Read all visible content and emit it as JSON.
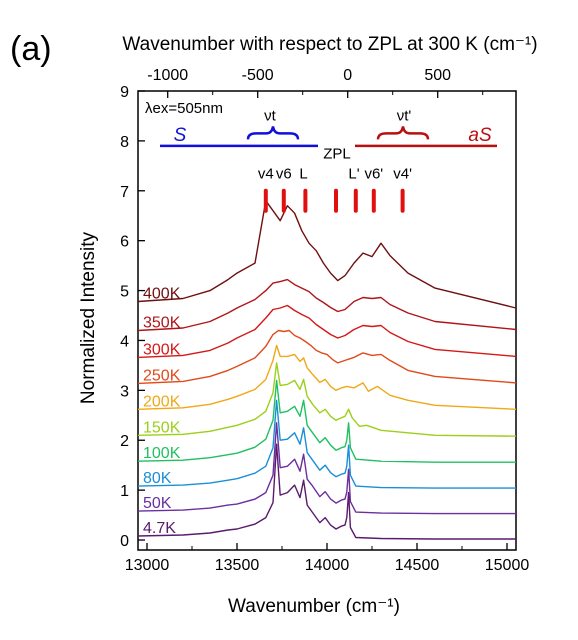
{
  "panel_label": "(a)",
  "chart_data": {
    "type": "line",
    "title": "",
    "xlabel": "Wavenumber (cm⁻¹)",
    "ylabel": "Normalized Intensity",
    "top_xlabel": "Wavenumber with respect to ZPL at 300 K (cm⁻¹)",
    "xlim": [
      12950,
      15050
    ],
    "ylim": [
      -0.2,
      9
    ],
    "top_xlim": [
      -1165,
      935
    ],
    "x_ticks": [
      "13000",
      "13500",
      "14000",
      "14500",
      "15000"
    ],
    "y_ticks": [
      "0",
      "1",
      "2",
      "3",
      "4",
      "5",
      "6",
      "7",
      "8",
      "9"
    ],
    "top_ticks": [
      "-1000",
      "-500",
      "0",
      "500"
    ],
    "grid": false,
    "series": [
      {
        "name": "4.7K",
        "offset": 0,
        "color": "#5a1a6e",
        "peak": 1.0,
        "broad": 0.15,
        "x": [
          12950,
          13200,
          13350,
          13450,
          13500,
          13600,
          13660,
          13700,
          13720,
          13740,
          13780,
          13820,
          13850,
          13870,
          13890,
          13920,
          13960,
          13990,
          14020,
          14050,
          14080,
          14100,
          14110,
          14120,
          14130,
          14160,
          14300,
          14600,
          15050
        ],
        "y": [
          0.08,
          0.1,
          0.14,
          0.2,
          0.22,
          0.32,
          0.45,
          0.75,
          1.92,
          0.9,
          0.95,
          1.1,
          0.85,
          1.2,
          0.7,
          0.55,
          0.35,
          0.45,
          0.3,
          0.22,
          0.28,
          0.3,
          0.45,
          0.95,
          0.25,
          0.05,
          0.03,
          0.02,
          0.02
        ]
      },
      {
        "name": "50K",
        "offset": 0.5,
        "color": "#6a2fa0",
        "peak": 1.0,
        "broad": 0.2,
        "x": [
          12950,
          13200,
          13350,
          13450,
          13500,
          13600,
          13660,
          13700,
          13720,
          13740,
          13780,
          13820,
          13850,
          13870,
          13890,
          13920,
          13960,
          13990,
          14020,
          14050,
          14080,
          14100,
          14110,
          14120,
          14130,
          14160,
          14300,
          14600,
          15050
        ],
        "y": [
          0.08,
          0.1,
          0.14,
          0.2,
          0.22,
          0.32,
          0.45,
          0.8,
          1.85,
          0.95,
          0.98,
          1.12,
          0.88,
          1.22,
          0.72,
          0.58,
          0.37,
          0.47,
          0.32,
          0.24,
          0.3,
          0.32,
          0.46,
          0.92,
          0.27,
          0.06,
          0.04,
          0.03,
          0.03
        ]
      },
      {
        "name": "80K",
        "offset": 1.0,
        "color": "#1a8fd8",
        "peak": 1.0,
        "broad": 0.25,
        "x": [
          12950,
          13200,
          13350,
          13450,
          13500,
          13600,
          13660,
          13700,
          13720,
          13740,
          13780,
          13820,
          13850,
          13870,
          13890,
          13920,
          13960,
          13990,
          14020,
          14050,
          14080,
          14100,
          14110,
          14120,
          14130,
          14160,
          14300,
          14600,
          15050
        ],
        "y": [
          0.08,
          0.1,
          0.14,
          0.2,
          0.23,
          0.34,
          0.48,
          0.85,
          1.8,
          1.0,
          1.02,
          1.15,
          0.92,
          1.25,
          0.75,
          0.6,
          0.4,
          0.5,
          0.35,
          0.27,
          0.32,
          0.34,
          0.48,
          0.9,
          0.3,
          0.08,
          0.05,
          0.04,
          0.04
        ]
      },
      {
        "name": "100K",
        "offset": 1.5,
        "color": "#20c060",
        "peak": 1.0,
        "broad": 0.3,
        "x": [
          12950,
          13200,
          13350,
          13450,
          13500,
          13600,
          13660,
          13700,
          13720,
          13740,
          13780,
          13820,
          13850,
          13870,
          13890,
          13920,
          13960,
          13990,
          14020,
          14050,
          14080,
          14100,
          14110,
          14120,
          14130,
          14160,
          14300,
          14600,
          15050
        ],
        "y": [
          0.08,
          0.1,
          0.15,
          0.21,
          0.24,
          0.36,
          0.52,
          0.9,
          1.7,
          1.05,
          1.08,
          1.18,
          0.98,
          1.3,
          0.8,
          0.65,
          0.45,
          0.55,
          0.4,
          0.3,
          0.35,
          0.37,
          0.5,
          0.85,
          0.35,
          0.12,
          0.08,
          0.06,
          0.06
        ]
      },
      {
        "name": "150K",
        "offset": 2.0,
        "color": "#9ccf1a",
        "peak": 1.0,
        "broad": 0.35,
        "x": [
          12950,
          13200,
          13350,
          13450,
          13500,
          13600,
          13660,
          13700,
          13720,
          13740,
          13780,
          13820,
          13850,
          13870,
          13890,
          13920,
          13960,
          13990,
          14020,
          14050,
          14080,
          14100,
          14120,
          14140,
          14180,
          14220,
          14300,
          14600,
          15050
        ],
        "y": [
          0.1,
          0.12,
          0.18,
          0.26,
          0.3,
          0.42,
          0.58,
          0.95,
          1.55,
          1.1,
          1.12,
          1.2,
          1.02,
          1.22,
          0.88,
          0.72,
          0.55,
          0.62,
          0.48,
          0.4,
          0.45,
          0.48,
          0.62,
          0.45,
          0.28,
          0.3,
          0.2,
          0.1,
          0.08
        ]
      },
      {
        "name": "200K",
        "offset": 2.5,
        "color": "#f0a818",
        "peak": 1.0,
        "broad": 0.45,
        "x": [
          12950,
          13200,
          13350,
          13450,
          13500,
          13600,
          13660,
          13700,
          13720,
          13740,
          13780,
          13820,
          13850,
          13870,
          13890,
          13920,
          13960,
          13990,
          14020,
          14050,
          14080,
          14110,
          14150,
          14200,
          14230,
          14280,
          14350,
          14450,
          14600,
          15050
        ],
        "y": [
          0.12,
          0.15,
          0.22,
          0.32,
          0.38,
          0.52,
          0.72,
          1.1,
          1.4,
          1.18,
          1.18,
          1.22,
          1.08,
          1.15,
          0.95,
          0.82,
          0.66,
          0.72,
          0.58,
          0.5,
          0.55,
          0.58,
          0.55,
          0.65,
          0.48,
          0.58,
          0.4,
          0.3,
          0.2,
          0.12
        ]
      },
      {
        "name": "250K",
        "offset": 3.0,
        "color": "#e04a1a",
        "peak": 1.0,
        "broad": 0.55,
        "x": [
          12950,
          13200,
          13350,
          13450,
          13500,
          13600,
          13660,
          13700,
          13730,
          13760,
          13790,
          13820,
          13850,
          13880,
          13910,
          13940,
          13970,
          14000,
          14030,
          14060,
          14100,
          14150,
          14200,
          14250,
          14300,
          14350,
          14450,
          14600,
          15050
        ],
        "y": [
          0.14,
          0.18,
          0.28,
          0.4,
          0.48,
          0.65,
          0.88,
          1.12,
          1.2,
          1.18,
          1.2,
          1.1,
          1.05,
          0.98,
          0.9,
          0.8,
          0.75,
          0.72,
          0.62,
          0.55,
          0.6,
          0.66,
          0.75,
          0.7,
          0.72,
          0.6,
          0.4,
          0.28,
          0.15
        ]
      },
      {
        "name": "300K",
        "offset": 3.5,
        "color": "#d41818",
        "peak": 1.0,
        "broad": 0.6,
        "x": [
          12950,
          13200,
          13350,
          13450,
          13500,
          13600,
          13660,
          13700,
          13740,
          13780,
          13820,
          13860,
          13900,
          13940,
          13980,
          14020,
          14060,
          14100,
          14150,
          14200,
          14250,
          14300,
          14350,
          14450,
          14600,
          15050
        ],
        "y": [
          0.16,
          0.2,
          0.3,
          0.45,
          0.55,
          0.72,
          0.95,
          1.12,
          1.15,
          1.2,
          1.1,
          1.02,
          0.95,
          0.82,
          0.72,
          0.62,
          0.55,
          0.6,
          0.72,
          0.8,
          0.78,
          0.8,
          0.66,
          0.48,
          0.32,
          0.18
        ]
      },
      {
        "name": "350K",
        "offset": 4.0,
        "color": "#b01418",
        "peak": 1.0,
        "broad": 0.65,
        "x": [
          12950,
          13200,
          13350,
          13450,
          13500,
          13600,
          13660,
          13700,
          13740,
          13780,
          13820,
          13860,
          13900,
          13940,
          13980,
          14020,
          14060,
          14100,
          14150,
          14200,
          14250,
          14300,
          14350,
          14450,
          14600,
          15050
        ],
        "y": [
          0.2,
          0.25,
          0.38,
          0.55,
          0.65,
          0.82,
          1.0,
          1.15,
          1.18,
          1.22,
          1.12,
          1.05,
          0.98,
          0.85,
          0.76,
          0.66,
          0.58,
          0.62,
          0.78,
          0.86,
          0.84,
          0.86,
          0.72,
          0.55,
          0.38,
          0.22
        ]
      },
      {
        "name": "400K",
        "offset": 4.5,
        "color": "#6e1010",
        "peak": 1.0,
        "broad": 0.7,
        "x": [
          12950,
          13200,
          13350,
          13450,
          13500,
          13600,
          13660,
          13700,
          13740,
          13780,
          13820,
          13860,
          13900,
          13940,
          13980,
          14020,
          14060,
          14100,
          14150,
          14200,
          14250,
          14300,
          14350,
          14450,
          14600,
          15050
        ],
        "y": [
          0.28,
          0.34,
          0.5,
          0.72,
          0.85,
          1.05,
          2.3,
          2.1,
          1.9,
          2.2,
          2.05,
          1.7,
          1.45,
          1.3,
          1.05,
          0.85,
          0.7,
          0.8,
          1.05,
          1.25,
          1.18,
          1.45,
          1.2,
          0.85,
          0.55,
          0.15
        ]
      }
    ],
    "annotations": {
      "excitation": "λex=505nm",
      "stokes_label": "S",
      "antistokes_label": "aS",
      "zpl_label": "ZPL",
      "nu_t": "νt",
      "nu_t_prime": "νt'",
      "mode_labels": [
        "v4",
        "v6",
        "L",
        "L'",
        "v6'",
        "v4'"
      ],
      "mode_positions": [
        13660,
        13760,
        13870,
        14150,
        14260,
        14420
      ],
      "marker_positions": [
        13660,
        13760,
        13880,
        14050,
        14160,
        14260,
        14420
      ]
    },
    "colors": {
      "stokes": "#1010d8",
      "antistokes": "#b81010",
      "zpl": "#20a060",
      "markers": "#e01010"
    }
  }
}
